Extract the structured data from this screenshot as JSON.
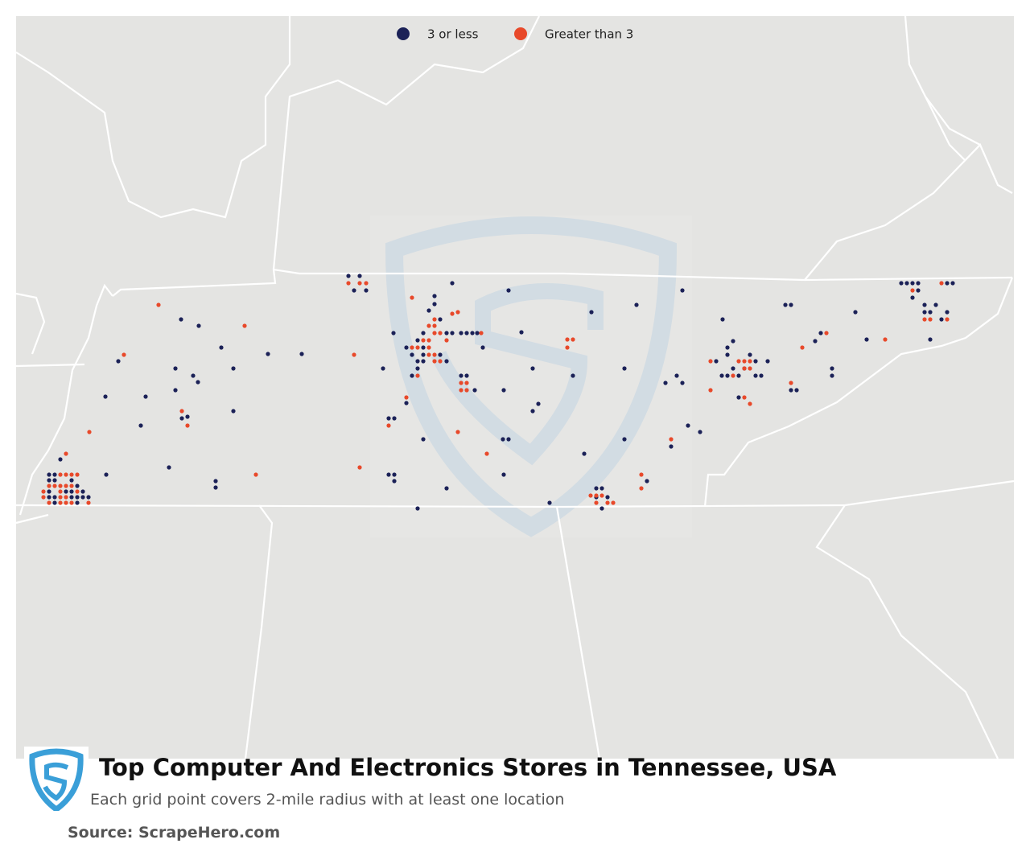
{
  "legend": [
    {
      "label": "3 or less",
      "color": "#1b2157"
    },
    {
      "label": "Greater than 3",
      "color": "#e8492a"
    }
  ],
  "title": "Top Computer And Electronics Stores in Tennessee, USA",
  "subtitle": "Each grid point covers 2-mile radius with at least one location",
  "source": "Source: ScrapeHero.com"
}
